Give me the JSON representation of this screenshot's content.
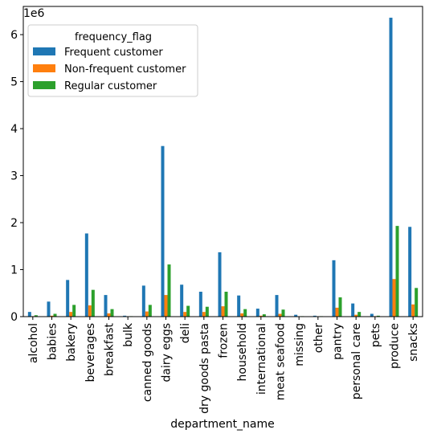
{
  "chart_data": {
    "type": "bar",
    "xlabel": "department_name",
    "ylabel": "",
    "y_scale_label": "1e6",
    "ylim": [
      0,
      6.6
    ],
    "y_ticks": [
      0,
      1,
      2,
      3,
      4,
      5,
      6
    ],
    "legend": {
      "title": "frequency_flag",
      "placement": "top-left"
    },
    "categories": [
      "alcohol",
      "babies",
      "bakery",
      "beverages",
      "breakfast",
      "bulk",
      "canned goods",
      "dairy eggs",
      "deli",
      "dry goods pasta",
      "frozen",
      "household",
      "international",
      "meat seafood",
      "missing",
      "other",
      "pantry",
      "personal care",
      "pets",
      "produce",
      "snacks"
    ],
    "series": [
      {
        "name": "Frequent customer",
        "color": "#1f77b4",
        "values": [
          0.1,
          0.32,
          0.78,
          1.77,
          0.46,
          0.02,
          0.66,
          3.63,
          0.68,
          0.53,
          1.37,
          0.45,
          0.17,
          0.46,
          0.04,
          0.02,
          1.2,
          0.28,
          0.06,
          6.36,
          1.91
        ]
      },
      {
        "name": "Non-frequent customer",
        "color": "#ff7f0e",
        "values": [
          0.01,
          0.02,
          0.1,
          0.24,
          0.07,
          0.0,
          0.11,
          0.46,
          0.1,
          0.1,
          0.22,
          0.07,
          0.02,
          0.06,
          0.0,
          0.0,
          0.19,
          0.04,
          0.01,
          0.8,
          0.26
        ]
      },
      {
        "name": "Regular customer",
        "color": "#2ca02c",
        "values": [
          0.03,
          0.06,
          0.25,
          0.57,
          0.16,
          0.01,
          0.25,
          1.11,
          0.23,
          0.21,
          0.53,
          0.16,
          0.05,
          0.15,
          0.01,
          0.01,
          0.41,
          0.1,
          0.02,
          1.93,
          0.61
        ]
      }
    ]
  }
}
